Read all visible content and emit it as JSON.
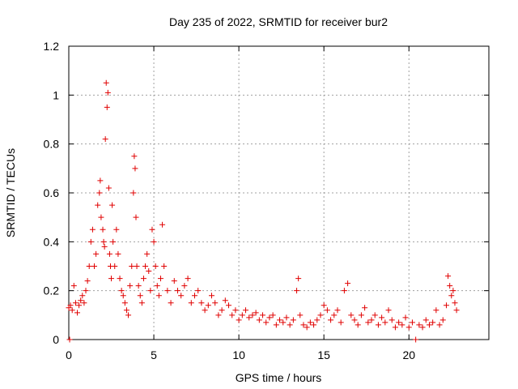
{
  "chart_data": {
    "type": "scatter",
    "title": "Day 235 of 2022, SRMTID for receiver bur2",
    "xlabel": "GPS time / hours",
    "ylabel": "SRMTID / TECUs",
    "xlim": [
      0,
      24.7
    ],
    "ylim": [
      0,
      1.2
    ],
    "xticks": [
      0,
      5,
      10,
      15,
      20
    ],
    "yticks": [
      0,
      0.2,
      0.4,
      0.6,
      0.8,
      1,
      1.2
    ],
    "xtick_labels": [
      "0",
      "5",
      "10",
      "15",
      "20"
    ],
    "ytick_labels": [
      "0",
      "0.2",
      "0.4",
      "0.6",
      "0.8",
      "1",
      "1.2"
    ],
    "grid": true,
    "marker": "plus",
    "series_color": "#e00000",
    "series": [
      {
        "name": "SRMTID",
        "x": [
          0.0,
          0.05,
          0.1,
          0.2,
          0.3,
          0.4,
          0.5,
          0.6,
          0.7,
          0.8,
          0.9,
          1.0,
          1.1,
          1.2,
          1.3,
          1.4,
          1.5,
          1.6,
          1.7,
          1.8,
          1.85,
          1.9,
          2.0,
          2.05,
          2.1,
          2.15,
          2.2,
          2.25,
          2.3,
          2.35,
          2.4,
          2.45,
          2.5,
          2.55,
          2.6,
          2.7,
          2.8,
          2.9,
          3.0,
          3.1,
          3.2,
          3.3,
          3.4,
          3.5,
          3.6,
          3.7,
          3.8,
          3.85,
          3.9,
          3.95,
          4.0,
          4.1,
          4.2,
          4.3,
          4.4,
          4.5,
          4.6,
          4.7,
          4.8,
          4.9,
          5.0,
          5.1,
          5.2,
          5.3,
          5.4,
          5.5,
          5.6,
          5.8,
          6.0,
          6.2,
          6.4,
          6.6,
          6.8,
          7.0,
          7.2,
          7.4,
          7.6,
          7.8,
          8.0,
          8.2,
          8.4,
          8.6,
          8.8,
          9.0,
          9.2,
          9.4,
          9.6,
          9.8,
          10.0,
          10.2,
          10.4,
          10.6,
          10.8,
          11.0,
          11.2,
          11.4,
          11.6,
          11.8,
          12.0,
          12.2,
          12.4,
          12.6,
          12.8,
          13.0,
          13.2,
          13.4,
          13.5,
          13.6,
          13.8,
          14.0,
          14.2,
          14.4,
          14.6,
          14.8,
          15.0,
          15.2,
          15.4,
          15.6,
          15.8,
          16.0,
          16.2,
          16.4,
          16.6,
          16.8,
          17.0,
          17.2,
          17.4,
          17.6,
          17.8,
          18.0,
          18.2,
          18.4,
          18.6,
          18.8,
          19.0,
          19.2,
          19.4,
          19.6,
          19.8,
          20.0,
          20.2,
          20.4,
          20.6,
          20.8,
          21.0,
          21.2,
          21.4,
          21.6,
          21.8,
          22.0,
          22.2,
          22.3,
          22.4,
          22.5,
          22.6,
          22.7,
          22.8
        ],
        "y": [
          0.13,
          0.0,
          0.14,
          0.12,
          0.22,
          0.15,
          0.11,
          0.14,
          0.16,
          0.18,
          0.15,
          0.2,
          0.24,
          0.3,
          0.4,
          0.45,
          0.3,
          0.35,
          0.55,
          0.6,
          0.65,
          0.5,
          0.45,
          0.4,
          0.38,
          0.82,
          1.05,
          0.95,
          1.01,
          0.62,
          0.35,
          0.3,
          0.25,
          0.55,
          0.4,
          0.3,
          0.45,
          0.35,
          0.25,
          0.2,
          0.18,
          0.15,
          0.12,
          0.1,
          0.22,
          0.3,
          0.6,
          0.75,
          0.7,
          0.5,
          0.3,
          0.22,
          0.18,
          0.15,
          0.25,
          0.3,
          0.35,
          0.28,
          0.2,
          0.45,
          0.4,
          0.3,
          0.22,
          0.18,
          0.25,
          0.47,
          0.3,
          0.2,
          0.15,
          0.24,
          0.2,
          0.18,
          0.22,
          0.25,
          0.15,
          0.18,
          0.2,
          0.15,
          0.12,
          0.14,
          0.18,
          0.15,
          0.1,
          0.12,
          0.16,
          0.14,
          0.1,
          0.12,
          0.08,
          0.1,
          0.12,
          0.09,
          0.1,
          0.11,
          0.08,
          0.1,
          0.07,
          0.09,
          0.1,
          0.06,
          0.08,
          0.07,
          0.09,
          0.06,
          0.08,
          0.2,
          0.25,
          0.1,
          0.06,
          0.05,
          0.07,
          0.06,
          0.08,
          0.1,
          0.14,
          0.12,
          0.08,
          0.1,
          0.12,
          0.07,
          0.2,
          0.23,
          0.1,
          0.08,
          0.06,
          0.1,
          0.13,
          0.07,
          0.08,
          0.1,
          0.06,
          0.09,
          0.07,
          0.12,
          0.08,
          0.05,
          0.07,
          0.06,
          0.09,
          0.05,
          0.07,
          0.0,
          0.06,
          0.05,
          0.08,
          0.06,
          0.07,
          0.12,
          0.06,
          0.08,
          0.14,
          0.26,
          0.22,
          0.18,
          0.2,
          0.15,
          0.12
        ]
      }
    ]
  }
}
